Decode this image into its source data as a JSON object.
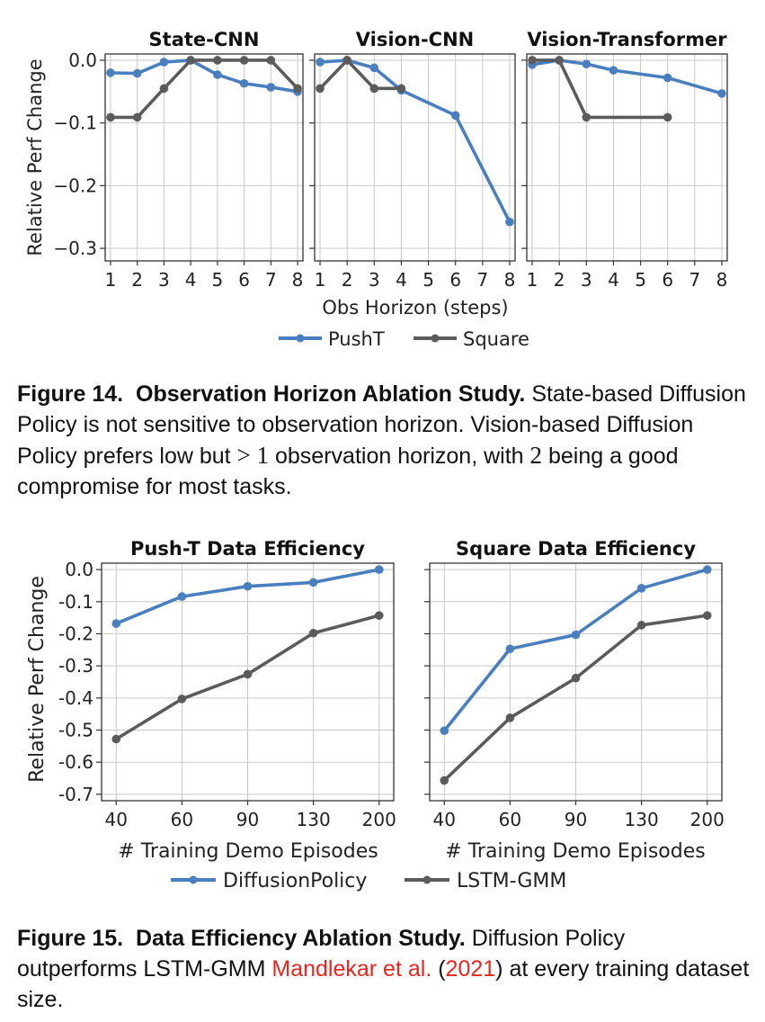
{
  "colors": {
    "pusht_blue": "#4a7fbf",
    "square_gray": "#5b5b5b",
    "cite_red": "#e8251e"
  },
  "figure14": {
    "xlabel": "Obs Horizon (steps)",
    "ylabel": "Relative Perf Change",
    "legend": [
      "PushT",
      "Square"
    ],
    "caption": {
      "label": "Figure 14.",
      "title": "Observation Horizon Ablation Study.",
      "text_1": "State-based Diffusion Policy is not sensitive to observation horizon. Vision-based Diffusion Policy prefers low but",
      "math_1": "> 1",
      "text_2": "observation horizon, with",
      "math_2": "2",
      "text_3": "being a good compromise for most tasks."
    }
  },
  "figure15": {
    "xlabel": "# Training Demo Episodes",
    "ylabel": "Relative Perf Change",
    "legend": [
      "DiffusionPolicy",
      "LSTM-GMM"
    ],
    "caption": {
      "label": "Figure 15.",
      "title": "Data Efficiency Ablation Study.",
      "text_1": "Diffusion Policy outperforms LSTM-GMM",
      "cite_author": "Mandlekar et al.",
      "cite_open": "(",
      "cite_year": "2021",
      "cite_close": ")",
      "text_2": "at every training dataset size."
    }
  },
  "chart_data": [
    {
      "type": "line",
      "title": "State-CNN",
      "xlabel": "Obs Horizon (steps)",
      "ylabel": "Relative Perf Change",
      "xlim": [
        0.8,
        8.2
      ],
      "ylim": [
        -0.32,
        0.01
      ],
      "xticks": [
        1,
        2,
        3,
        4,
        5,
        6,
        7,
        8
      ],
      "yticks": [
        0.0,
        -0.1,
        -0.2,
        -0.3
      ],
      "ytick_labels": [
        "0.0",
        "−0.1",
        "−0.2",
        "−0.3"
      ],
      "grid": true,
      "legend": "bottom-center",
      "series": [
        {
          "name": "PushT",
          "color": "#4a7fbf",
          "x": [
            1,
            2,
            3,
            4,
            5,
            6,
            7,
            8
          ],
          "y": [
            -0.02,
            -0.021,
            -0.003,
            0.0,
            -0.023,
            -0.037,
            -0.043,
            -0.05
          ]
        },
        {
          "name": "Square",
          "color": "#5b5b5b",
          "x": [
            1,
            2,
            3,
            4,
            5,
            6,
            7,
            8
          ],
          "y": [
            -0.091,
            -0.091,
            -0.045,
            0.0,
            0.0,
            0.0,
            0.0,
            -0.045
          ]
        }
      ]
    },
    {
      "type": "line",
      "title": "Vision-CNN",
      "xlim": [
        0.8,
        8.2
      ],
      "ylim": [
        -0.32,
        0.01
      ],
      "xticks": [
        1,
        2,
        3,
        4,
        5,
        6,
        7,
        8
      ],
      "grid": true,
      "series": [
        {
          "name": "PushT",
          "color": "#4a7fbf",
          "x": [
            1,
            2,
            3,
            4,
            6,
            8
          ],
          "y": [
            -0.003,
            0.0,
            -0.012,
            -0.048,
            -0.088,
            -0.258
          ]
        },
        {
          "name": "Square",
          "color": "#5b5b5b",
          "x": [
            1,
            2,
            3,
            4
          ],
          "y": [
            -0.045,
            0.0,
            -0.045,
            -0.045
          ]
        }
      ]
    },
    {
      "type": "line",
      "title": "Vision-Transformer",
      "xlim": [
        0.8,
        8.2
      ],
      "ylim": [
        -0.32,
        0.01
      ],
      "xticks": [
        1,
        2,
        3,
        4,
        5,
        6,
        7,
        8
      ],
      "grid": true,
      "series": [
        {
          "name": "PushT",
          "color": "#4a7fbf",
          "x": [
            1,
            2,
            3,
            4,
            6,
            8
          ],
          "y": [
            -0.007,
            0.0,
            -0.006,
            -0.016,
            -0.028,
            -0.053
          ]
        },
        {
          "name": "Square",
          "color": "#5b5b5b",
          "x": [
            1,
            2,
            3,
            6
          ],
          "y": [
            0.0,
            0.0,
            -0.091,
            -0.091
          ]
        }
      ]
    },
    {
      "type": "line",
      "title": "Push-T Data Efficiency",
      "xlabel": "# Training Demo Episodes",
      "ylabel": "Relative Perf Change",
      "categories": [
        "40",
        "60",
        "90",
        "130",
        "200"
      ],
      "ylim": [
        -0.72,
        0.02
      ],
      "yticks": [
        0.0,
        -0.1,
        -0.2,
        -0.3,
        -0.4,
        -0.5,
        -0.6,
        -0.7
      ],
      "ytick_labels": [
        "0.0",
        "-0.1",
        "-0.2",
        "-0.3",
        "-0.4",
        "-0.5",
        "-0.6",
        "-0.7"
      ],
      "grid": true,
      "legend": "bottom-center",
      "series": [
        {
          "name": "DiffusionPolicy",
          "color": "#4a7fbf",
          "values": [
            -0.168,
            -0.084,
            -0.052,
            -0.04,
            0.0
          ]
        },
        {
          "name": "LSTM-GMM",
          "color": "#5b5b5b",
          "values": [
            -0.528,
            -0.403,
            -0.326,
            -0.198,
            -0.143
          ]
        }
      ]
    },
    {
      "type": "line",
      "title": "Square Data Efficiency",
      "xlabel": "# Training Demo Episodes",
      "categories": [
        "40",
        "60",
        "90",
        "130",
        "200"
      ],
      "ylim": [
        -0.72,
        0.02
      ],
      "grid": true,
      "series": [
        {
          "name": "DiffusionPolicy",
          "color": "#4a7fbf",
          "values": [
            -0.502,
            -0.247,
            -0.203,
            -0.058,
            0.0
          ]
        },
        {
          "name": "LSTM-GMM",
          "color": "#5b5b5b",
          "values": [
            -0.657,
            -0.462,
            -0.338,
            -0.173,
            -0.143
          ]
        }
      ]
    }
  ]
}
